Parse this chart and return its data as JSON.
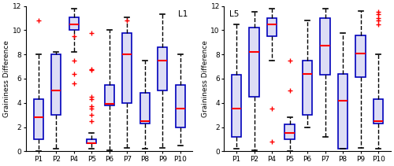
{
  "L1": {
    "label": "L1",
    "categories": [
      "P1",
      "P2",
      "P4",
      "P5",
      "P6",
      "P7",
      "P8",
      "P9",
      "P10"
    ],
    "boxes": [
      {
        "whislo": 0.0,
        "q1": 1.0,
        "med": 2.8,
        "q3": 4.3,
        "whishi": 8.0,
        "fliers": [
          10.8
        ]
      },
      {
        "whislo": 0.2,
        "q1": 3.0,
        "med": 5.0,
        "q3": 8.0,
        "whishi": 8.2,
        "fliers": []
      },
      {
        "whislo": 8.2,
        "q1": 10.0,
        "med": 10.5,
        "q3": 11.1,
        "whishi": 11.8,
        "fliers": [
          7.5,
          6.4,
          5.6,
          9.5
        ]
      },
      {
        "whislo": 0.2,
        "q1": 0.7,
        "med": 0.7,
        "q3": 1.0,
        "whishi": 1.5,
        "fliers": [
          2.5,
          3.0,
          3.5,
          3.7,
          4.3,
          4.5,
          6.7,
          6.8,
          9.8
        ]
      },
      {
        "whislo": 0.1,
        "q1": 3.8,
        "med": 3.9,
        "q3": 5.5,
        "whishi": 10.0,
        "fliers": []
      },
      {
        "whislo": 0.3,
        "q1": 4.0,
        "med": 8.0,
        "q3": 9.8,
        "whishi": 11.1,
        "fliers": [
          10.8
        ]
      },
      {
        "whislo": 0.2,
        "q1": 2.3,
        "med": 2.5,
        "q3": 4.8,
        "whishi": 7.5,
        "fliers": []
      },
      {
        "whislo": 0.3,
        "q1": 5.0,
        "med": 7.5,
        "q3": 8.6,
        "whishi": 11.3,
        "fliers": []
      },
      {
        "whislo": 0.5,
        "q1": 2.0,
        "med": 3.5,
        "q3": 5.5,
        "whishi": 8.0,
        "fliers": []
      }
    ]
  },
  "L5": {
    "label": "L5",
    "categories": [
      "P1",
      "P2",
      "P4",
      "P5",
      "P6",
      "P7",
      "P8",
      "P9",
      "P10"
    ],
    "boxes": [
      {
        "whislo": 0.2,
        "q1": 1.2,
        "med": 3.5,
        "q3": 6.3,
        "whishi": 10.5,
        "fliers": []
      },
      {
        "whislo": 0.1,
        "q1": 4.5,
        "med": 8.2,
        "q3": 10.2,
        "whishi": 11.5,
        "fliers": []
      },
      {
        "whislo": 7.5,
        "q1": 9.5,
        "med": 10.5,
        "q3": 11.0,
        "whishi": 11.8,
        "fliers": [
          3.5,
          0.8
        ]
      },
      {
        "whislo": 0.0,
        "q1": 1.0,
        "med": 1.5,
        "q3": 2.2,
        "whishi": 2.8,
        "fliers": [
          5.0,
          7.5
        ]
      },
      {
        "whislo": 2.0,
        "q1": 3.0,
        "med": 6.4,
        "q3": 7.5,
        "whishi": 10.8,
        "fliers": []
      },
      {
        "whislo": 1.2,
        "q1": 6.3,
        "med": 8.7,
        "q3": 11.0,
        "whishi": 11.8,
        "fliers": []
      },
      {
        "whislo": 0.2,
        "q1": 0.2,
        "med": 4.2,
        "q3": 6.4,
        "whishi": 9.8,
        "fliers": []
      },
      {
        "whislo": 0.3,
        "q1": 6.1,
        "med": 8.1,
        "q3": 9.6,
        "whishi": 11.6,
        "fliers": []
      },
      {
        "whislo": 0.2,
        "q1": 2.3,
        "med": 2.5,
        "q3": 4.3,
        "whishi": 8.0,
        "fliers": [
          10.5,
          10.8,
          11.0,
          11.3,
          11.5
        ]
      }
    ]
  },
  "box_facecolor": "#DDDDF5",
  "box_edgecolor": "#0000BB",
  "median_color": "#FF0000",
  "flier_color": "#FF0000",
  "whisker_color": "#000000",
  "cap_color": "#000000",
  "ylabel": "Graininess Difference",
  "ylim": [
    0,
    12
  ],
  "yticks": [
    0,
    2,
    4,
    6,
    8,
    10,
    12
  ],
  "figure_facecolor": "#FFFFFF"
}
